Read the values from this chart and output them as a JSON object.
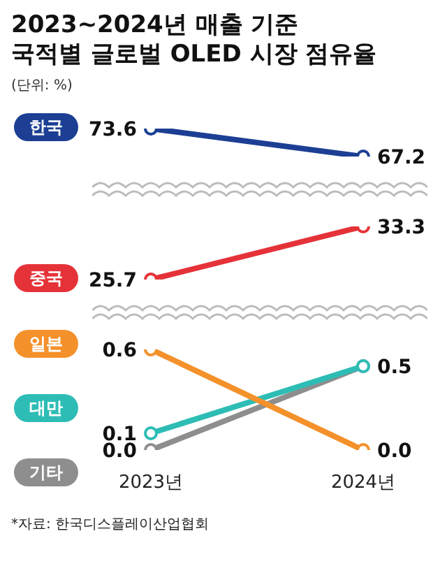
{
  "chart_data": [
    {
      "type": "line",
      "title": "2023~2024년 매출 기준\n국적별 글로벌 OLED 시장 점유율",
      "subtitle": "(단위: %)",
      "tick_labels": false,
      "legend": "left",
      "marker": "circle",
      "series": [
        {
          "name": "한국",
          "color": "#1c3f94",
          "values": [
            73.6,
            67.2
          ],
          "value_labels": [
            "73.6",
            "67.2"
          ]
        }
      ]
    },
    {
      "type": "line",
      "tick_labels": false,
      "legend": "left",
      "marker": "circle",
      "series": [
        {
          "name": "중국",
          "color": "#e53238",
          "values": [
            25.7,
            33.3
          ],
          "value_labels": [
            "25.7",
            "33.3"
          ]
        }
      ]
    },
    {
      "type": "line",
      "categories": [
        "2023년",
        "2024년"
      ],
      "tick_labels": "x",
      "legend": "left",
      "marker": "circle",
      "annotations": [
        "*자료: 한국디스플레이산업협회"
      ],
      "series": [
        {
          "name": "일본",
          "color": "#f4912b",
          "values": [
            0.6,
            0.0
          ],
          "value_labels": [
            "0.6",
            "0.0"
          ]
        },
        {
          "name": "대만",
          "color": "#2dbdb5",
          "values": [
            0.1,
            0.5
          ],
          "value_labels": [
            "0.1",
            "0.5"
          ]
        },
        {
          "name": "기타",
          "color": "#8e8e8e",
          "values": [
            0.0,
            0.5
          ],
          "value_labels": [
            "0.0",
            null
          ]
        }
      ]
    }
  ]
}
